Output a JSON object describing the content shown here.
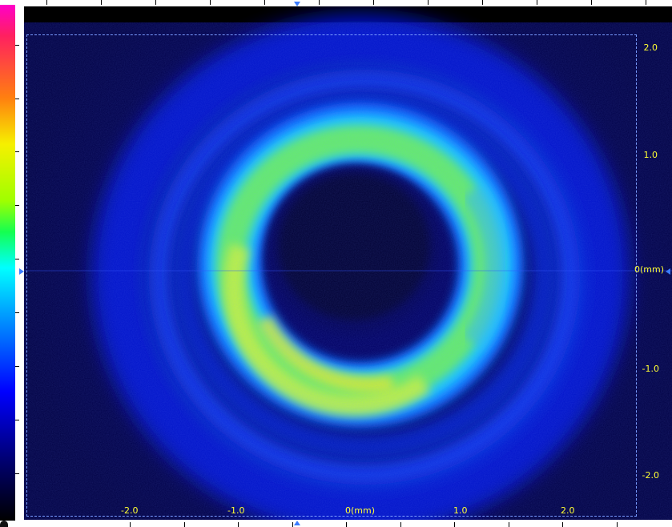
{
  "x_axis": {
    "labels": [
      "-2.0",
      "-1.0",
      "0(mm)",
      "1.0",
      "2.0"
    ]
  },
  "y_axis": {
    "labels": [
      "2.0",
      "1.0",
      "0(mm)",
      "-1.0",
      "-2.0"
    ]
  },
  "colormap": {
    "colors": [
      "#ff00c8",
      "#ff7f10",
      "#f6f000",
      "#9fff00",
      "#15ff50",
      "#00ffff",
      "#009dff",
      "#0000ff",
      "#00006a",
      "#000000"
    ]
  },
  "icons": {
    "crosshair_markers": "triangle-marker-icon",
    "corner": "circle-icon"
  }
}
